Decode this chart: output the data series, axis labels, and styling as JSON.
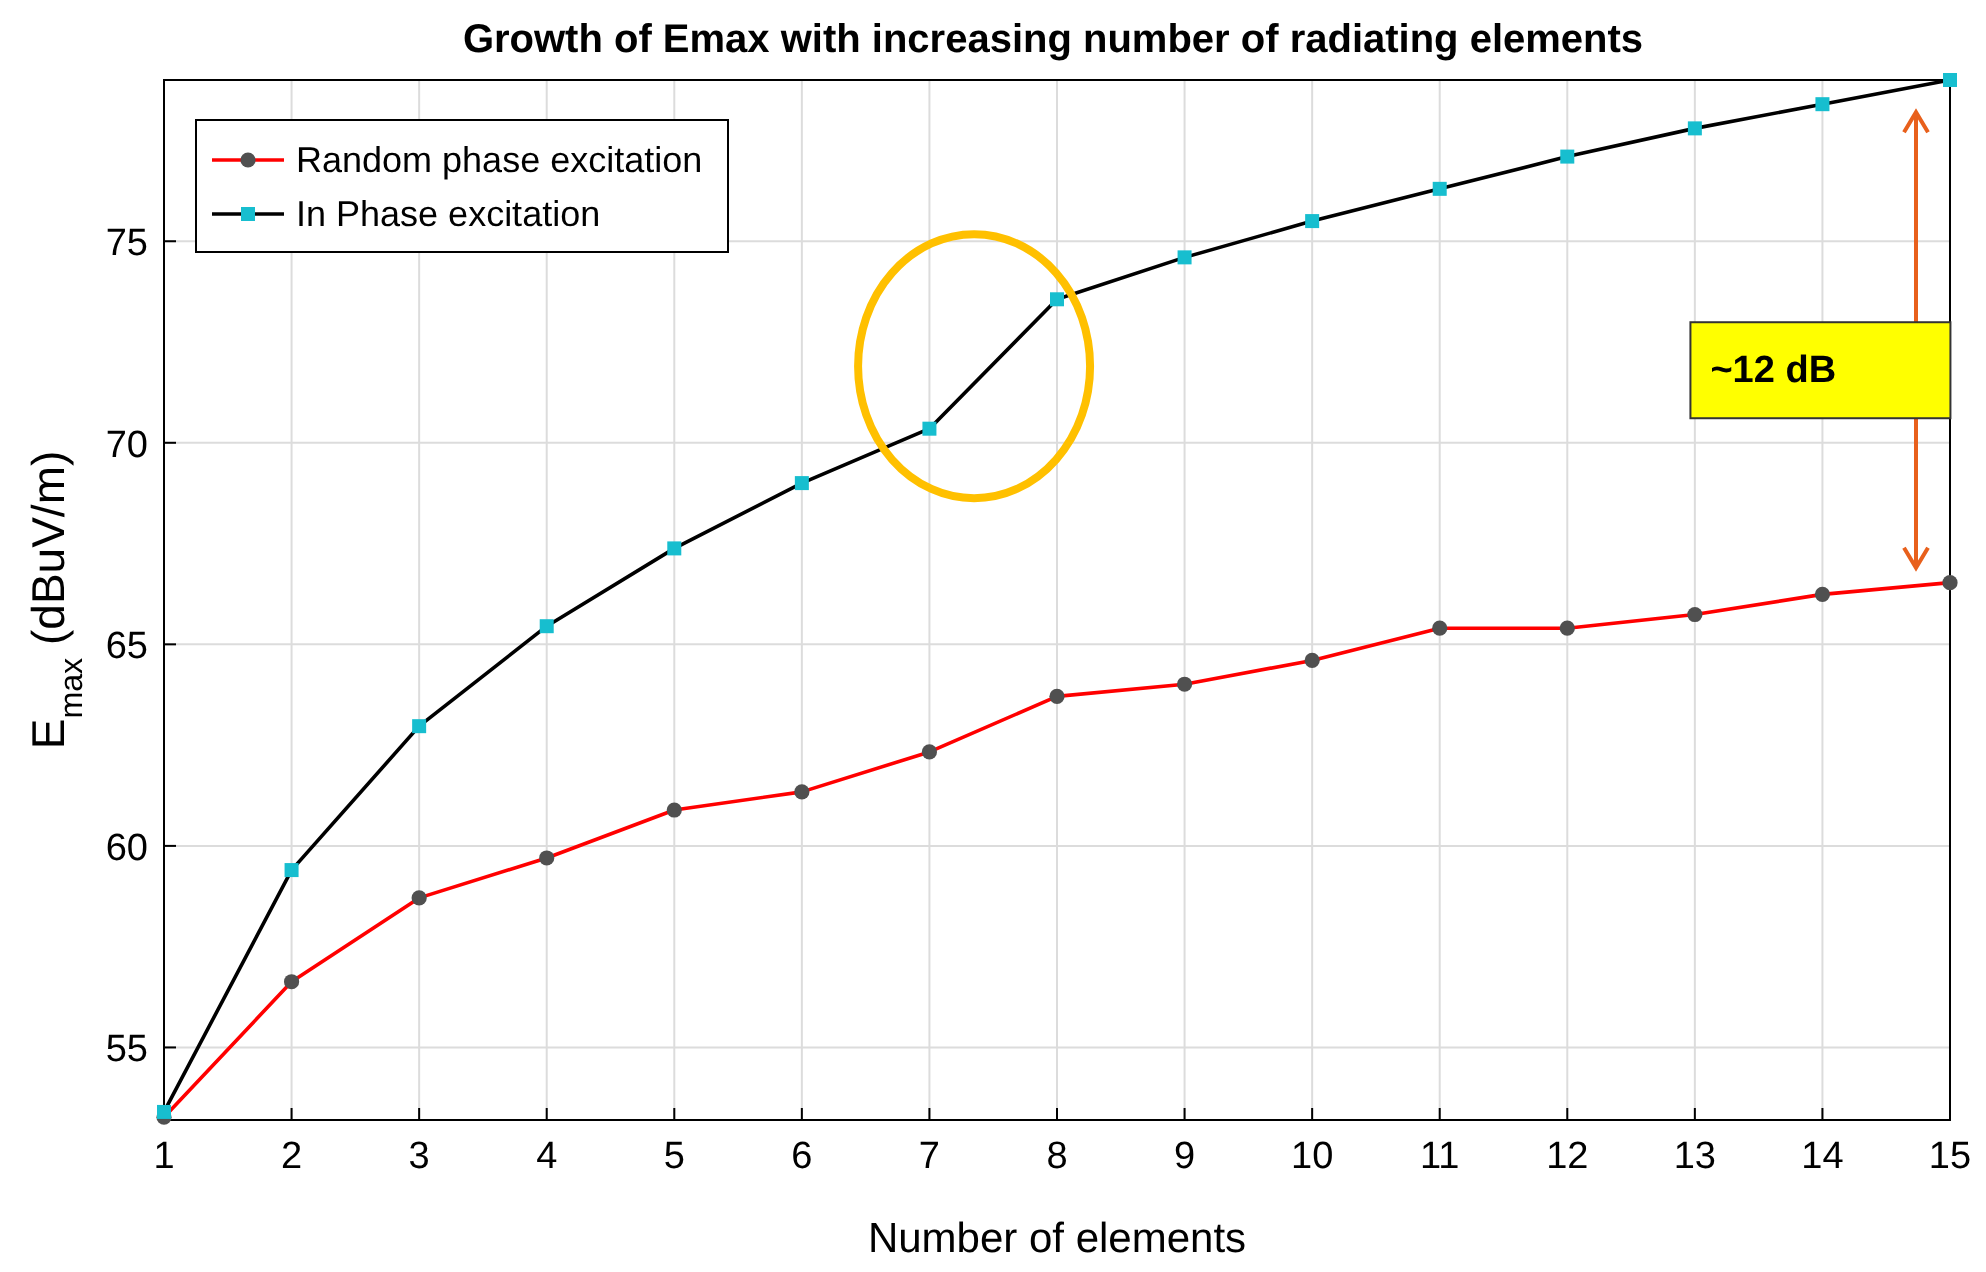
{
  "chart_data": {
    "type": "line",
    "title": "Growth of Emax with increasing number of radiating elements",
    "xlabel": "Number of elements",
    "ylabel": "E$_{max}$ (dBuV/m)",
    "x": [
      1,
      2,
      3,
      4,
      5,
      6,
      7,
      8,
      9,
      10,
      11,
      12,
      13,
      14,
      15
    ],
    "series": [
      {
        "name": "Random phase excitation",
        "color": "#ff0000",
        "marker": "circle",
        "values": [
          53.27,
          56.63,
          58.71,
          59.7,
          60.89,
          61.34,
          62.33,
          63.71,
          64.01,
          64.6,
          65.4,
          65.4,
          65.74,
          66.24,
          66.53
        ]
      },
      {
        "name": "In Phase excitation",
        "color": "#000000",
        "marker": "square",
        "values": [
          53.4,
          59.4,
          62.97,
          65.45,
          67.38,
          69.0,
          70.35,
          73.56,
          74.6,
          75.5,
          76.3,
          77.1,
          77.8,
          78.4,
          79.0
        ]
      }
    ],
    "xlim": [
      1,
      15
    ],
    "ylim": [
      53.2,
      79
    ],
    "xticks": [
      1,
      2,
      3,
      4,
      5,
      6,
      7,
      8,
      9,
      10,
      11,
      12,
      13,
      14,
      15
    ],
    "yticks": [
      55,
      60,
      65,
      70,
      75
    ],
    "grid": true,
    "legend": "top left",
    "line_style": "solid",
    "annotations": [
      "~12 dB"
    ]
  }
}
